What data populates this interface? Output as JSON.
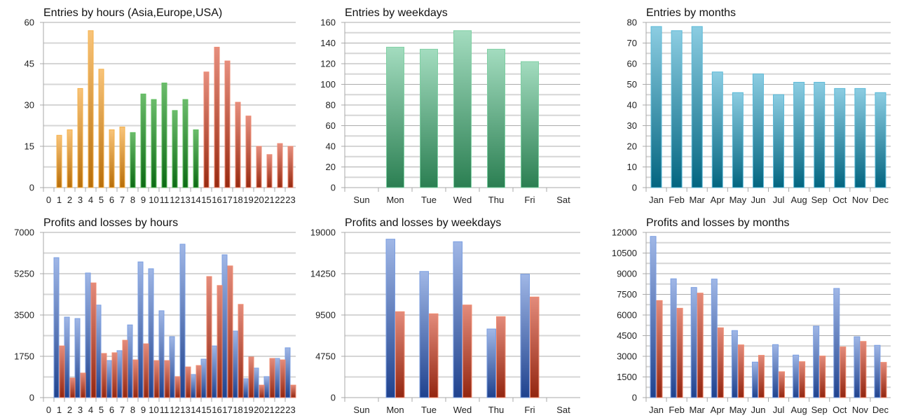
{
  "colors": {
    "asia_top": "#f8c47a",
    "asia_bottom": "#b86e08",
    "asia_border": "#f5b04a",
    "europe_top": "#6cbb6c",
    "europe_bottom": "#0c6a14",
    "europe_border": "#5fbf5f",
    "usa_top": "#e58e7e",
    "usa_bottom": "#982a10",
    "usa_border": "#ee8a72",
    "weekday_top": "#a3dcbf",
    "weekday_bottom": "#2b7f52",
    "weekday_border": "#7fd0a4",
    "month_top": "#8ccde2",
    "month_bottom": "#036580",
    "month_border": "#5cbad8",
    "profit_top": "#a0b7e6",
    "profit_bottom": "#1f428e",
    "profit_border": "#7b9fe2",
    "loss_top": "#e38b7b",
    "loss_bottom": "#932610",
    "loss_border": "#f08c70",
    "grid_major": "#ababab",
    "grid_minor": "#d6d6d6",
    "axis": "#a8a8a8"
  },
  "chart_data": [
    {
      "id": "entries-hours",
      "type": "bar",
      "title": "Entries by hours (Asia,Europe,USA)",
      "xlabel": "",
      "ylabel": "",
      "ylim": [
        0,
        60
      ],
      "yticks": [
        0,
        15,
        30,
        45,
        60
      ],
      "grid": true,
      "categories": [
        "0",
        "1",
        "2",
        "3",
        "4",
        "5",
        "6",
        "7",
        "8",
        "9",
        "10",
        "11",
        "12",
        "13",
        "14",
        "15",
        "16",
        "17",
        "18",
        "19",
        "20",
        "21",
        "22",
        "23"
      ],
      "series": [
        {
          "name": "Entries",
          "values": [
            0,
            19,
            21,
            36,
            57,
            43,
            21,
            22,
            20,
            34,
            32,
            38,
            28,
            32,
            21,
            42,
            51,
            46,
            31,
            26,
            15,
            12,
            16,
            15
          ]
        }
      ],
      "color_groups": [
        {
          "name": "Asia",
          "from": 0,
          "to": 7,
          "palette": "asia"
        },
        {
          "name": "Europe",
          "from": 8,
          "to": 14,
          "palette": "europe"
        },
        {
          "name": "USA",
          "from": 15,
          "to": 23,
          "palette": "usa"
        }
      ]
    },
    {
      "id": "entries-weekdays",
      "type": "bar",
      "title": "Entries by weekdays",
      "xlabel": "",
      "ylabel": "",
      "ylim": [
        0,
        160
      ],
      "yticks": [
        0,
        20,
        40,
        60,
        80,
        100,
        120,
        140,
        160
      ],
      "grid": true,
      "categories": [
        "Sun",
        "Mon",
        "Tue",
        "Wed",
        "Thu",
        "Fri",
        "Sat"
      ],
      "series": [
        {
          "name": "Entries",
          "values": [
            0,
            136,
            134,
            152,
            134,
            122,
            0
          ],
          "palette": "weekday"
        }
      ]
    },
    {
      "id": "entries-months",
      "type": "bar",
      "title": "Entries by months",
      "xlabel": "",
      "ylabel": "",
      "ylim": [
        0,
        80
      ],
      "yticks": [
        0,
        10,
        20,
        30,
        40,
        50,
        60,
        70,
        80
      ],
      "grid": true,
      "categories": [
        "Jan",
        "Feb",
        "Mar",
        "Apr",
        "May",
        "Jun",
        "Jul",
        "Aug",
        "Sep",
        "Oct",
        "Nov",
        "Dec"
      ],
      "series": [
        {
          "name": "Entries",
          "values": [
            78,
            76,
            78,
            56,
            46,
            55,
            45,
            51,
            51,
            48,
            48,
            46
          ],
          "palette": "month"
        }
      ]
    },
    {
      "id": "pl-hours",
      "type": "bar",
      "title": "Profits and losses by hours",
      "xlabel": "",
      "ylabel": "",
      "ylim": [
        0,
        7000
      ],
      "yticks": [
        0,
        1750,
        3500,
        5250,
        7000
      ],
      "grid": true,
      "categories": [
        "0",
        "1",
        "2",
        "3",
        "4",
        "5",
        "6",
        "7",
        "8",
        "9",
        "10",
        "11",
        "12",
        "13",
        "14",
        "15",
        "16",
        "17",
        "18",
        "19",
        "20",
        "21",
        "22",
        "23"
      ],
      "series": [
        {
          "name": "Profits",
          "palette": "profit",
          "values": [
            0,
            5930,
            3410,
            3350,
            5280,
            3920,
            1570,
            1990,
            3080,
            5750,
            5460,
            3680,
            2580,
            6500,
            980,
            1630,
            2190,
            6050,
            2820,
            800,
            1250,
            890,
            1660,
            2110
          ]
        },
        {
          "name": "Losses",
          "palette": "loss",
          "values": [
            0,
            2190,
            830,
            1040,
            4860,
            1870,
            1900,
            2430,
            1600,
            2280,
            1570,
            1570,
            890,
            1300,
            1360,
            5130,
            4750,
            5580,
            3950,
            1720,
            530,
            1660,
            1600,
            530
          ]
        }
      ]
    },
    {
      "id": "pl-weekdays",
      "type": "bar",
      "title": "Profits and losses by weekdays",
      "xlabel": "",
      "ylabel": "",
      "ylim": [
        0,
        19000
      ],
      "yticks": [
        0,
        4750,
        9500,
        14250,
        19000
      ],
      "grid": true,
      "categories": [
        "Sun",
        "Mon",
        "Tue",
        "Wed",
        "Thu",
        "Fri",
        "Sat"
      ],
      "series": [
        {
          "name": "Profits",
          "palette": "profit",
          "values": [
            0,
            18220,
            14510,
            17930,
            7890,
            14190,
            0
          ]
        },
        {
          "name": "Losses",
          "palette": "loss",
          "values": [
            0,
            9880,
            9640,
            10650,
            9310,
            11570,
            0
          ]
        }
      ]
    },
    {
      "id": "pl-months",
      "type": "bar",
      "title": "Profits and losses by months",
      "xlabel": "",
      "ylabel": "",
      "ylim": [
        0,
        12000
      ],
      "yticks": [
        0,
        1500,
        3000,
        4500,
        6000,
        7500,
        9000,
        10500,
        12000
      ],
      "grid": true,
      "categories": [
        "Jan",
        "Feb",
        "Mar",
        "Apr",
        "May",
        "Jun",
        "Jul",
        "Aug",
        "Sep",
        "Oct",
        "Nov",
        "Dec"
      ],
      "series": [
        {
          "name": "Profits",
          "palette": "profit",
          "values": [
            11710,
            8630,
            8000,
            8610,
            4870,
            2580,
            3850,
            3090,
            5190,
            7930,
            4420,
            3800
          ]
        },
        {
          "name": "Losses",
          "palette": "loss",
          "values": [
            7050,
            6490,
            7590,
            5070,
            3830,
            3070,
            1880,
            2610,
            3020,
            3680,
            4080,
            2560
          ]
        }
      ]
    }
  ]
}
